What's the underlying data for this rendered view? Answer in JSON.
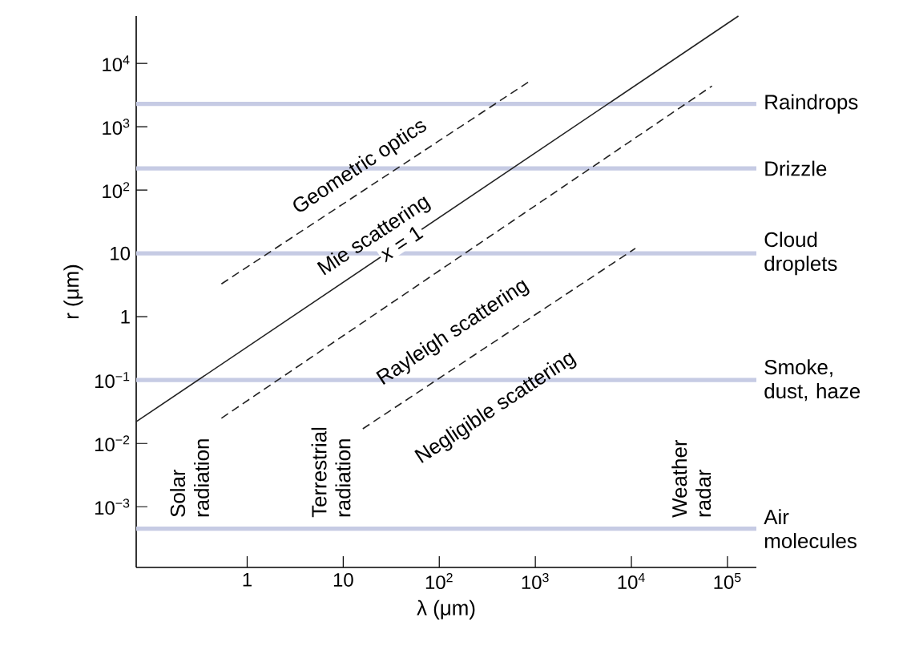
{
  "chart_data": {
    "type": "line",
    "xlabel": "λ (μm)",
    "ylabel": "r (μm)",
    "log": "xy",
    "xlim": [
      0.07,
      200000
    ],
    "ylim": [
      0.00011,
      56000
    ],
    "xticks": [
      1,
      10,
      {
        "value": 100,
        "label": "10$^{2}$"
      },
      {
        "value": 1000,
        "label": "10$^{3}$"
      },
      {
        "value": 10000,
        "label": "10$^{4}$"
      },
      {
        "value": 100000,
        "label": "10$^{5}$"
      }
    ],
    "yticks": [
      {
        "value": 0.001,
        "label": "10$^{−3}$"
      },
      {
        "value": 0.01,
        "label": "10$^{−2}$"
      },
      {
        "value": 0.1,
        "label": "10$^{−1}$"
      },
      1,
      10,
      {
        "value": 100,
        "label": "10$^{2}$"
      },
      {
        "value": 1000,
        "label": "10$^{3}$"
      },
      {
        "value": 10000,
        "label": "10$^{4}$"
      }
    ],
    "series": [
      {
        "name": "*x* = 1",
        "color": "#222222",
        "line_style": "solid",
        "x": [
          0.07,
          130000
        ],
        "values": [
          0.022,
          56000
        ]
      },
      {
        "color": "#222222",
        "line_style": "dashed",
        "x": [
          0.54,
          900
        ],
        "values": [
          3.3,
          5400
        ]
      },
      {
        "color": "#222222",
        "line_style": "dashed",
        "x": [
          0.54,
          69000
        ],
        "values": [
          0.025,
          4400
        ]
      },
      {
        "color": "#222222",
        "line_style": "dashed",
        "x": [
          16,
          11000
        ],
        "values": [
          0.017,
          12
        ]
      }
    ],
    "ref_lines": [
      {
        "axis": "y",
        "value": 2300,
        "label": "Raindrops",
        "color": "#c6cbe4"
      },
      {
        "axis": "y",
        "value": 220,
        "label": "Drizzle",
        "color": "#c6cbe4"
      },
      {
        "axis": "y",
        "value": 10,
        "label": "Cloud droplets",
        "color": "#c6cbe4"
      },
      {
        "axis": "y",
        "value": 0.1,
        "label": "Smoke, dust, haze",
        "color": "#c6cbe4"
      },
      {
        "axis": "y",
        "value": 0.00045,
        "label": "Air molecules",
        "color": "#c6cbe4"
      }
    ],
    "annotations": [
      "Geometric optics",
      "Mie scattering",
      "Rayleigh scattering",
      "Negligible scattering",
      "Solar radiation",
      "Terrestrial radiation",
      "Weather radar"
    ]
  }
}
